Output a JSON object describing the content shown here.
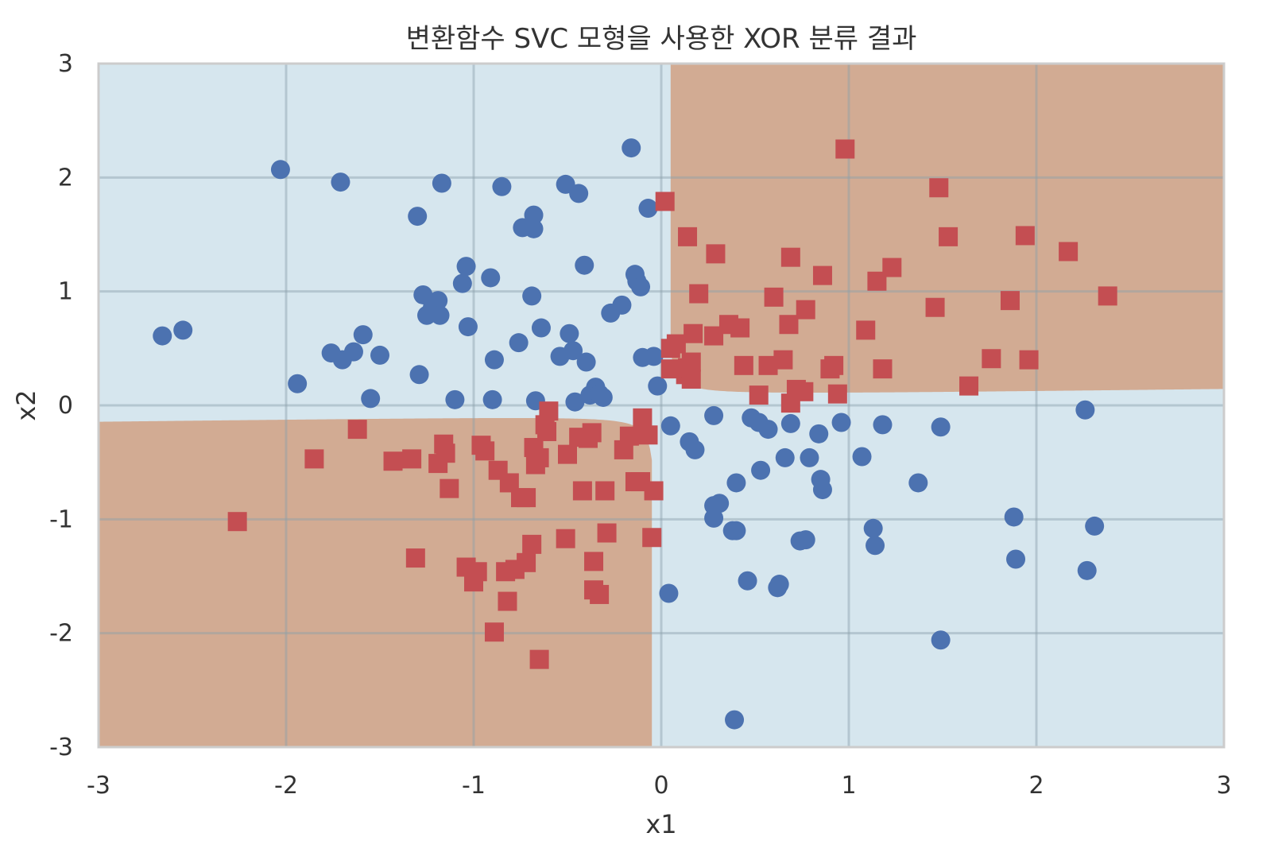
{
  "chart_data": {
    "type": "scatter",
    "title": "변환함수 SVC 모형을 사용한 XOR 분류 결과",
    "xlabel": "x1",
    "ylabel": "x2",
    "xlim": [
      -3,
      3
    ],
    "ylim": [
      -3,
      3
    ],
    "xticks": [
      -3,
      -2,
      -1,
      0,
      1,
      2,
      3
    ],
    "yticks": [
      -3,
      -2,
      -1,
      0,
      1,
      2,
      3
    ],
    "xtick_labels": [
      "-3",
      "-2",
      "-1",
      "0",
      "1",
      "2",
      "3"
    ],
    "ytick_labels": [
      "-3",
      "-2",
      "-1",
      "0",
      "1",
      "2",
      "3"
    ],
    "grid": true,
    "legend": "none",
    "decision_regions": {
      "class_0_color": "#d6e6ee",
      "class_1_color": "#d2ab93",
      "description_values": "XOR pattern: class 1 where x1*x2 > 0 (approx.)"
    },
    "series": [
      {
        "marker": "circle",
        "color": "#4c72b0",
        "points": [
          [
            -2.66,
            0.61
          ],
          [
            -2.55,
            0.66
          ],
          [
            -2.03,
            2.07
          ],
          [
            -1.94,
            0.19
          ],
          [
            -1.76,
            0.46
          ],
          [
            -1.7,
            0.4
          ],
          [
            -1.71,
            1.96
          ],
          [
            -1.64,
            0.47
          ],
          [
            -1.59,
            0.62
          ],
          [
            -1.55,
            0.06
          ],
          [
            -1.5,
            0.44
          ],
          [
            -1.3,
            1.66
          ],
          [
            -1.29,
            0.27
          ],
          [
            -1.27,
            0.97
          ],
          [
            -1.25,
            0.79
          ],
          [
            -1.22,
            0.86
          ],
          [
            -1.19,
            0.92
          ],
          [
            -1.18,
            0.79
          ],
          [
            -1.17,
            1.95
          ],
          [
            -1.1,
            0.05
          ],
          [
            -1.06,
            1.07
          ],
          [
            -1.04,
            1.22
          ],
          [
            -1.03,
            0.69
          ],
          [
            -0.91,
            1.12
          ],
          [
            -0.9,
            0.05
          ],
          [
            -0.89,
            0.4
          ],
          [
            -0.85,
            1.92
          ],
          [
            -0.76,
            0.55
          ],
          [
            -0.74,
            1.56
          ],
          [
            -0.69,
            0.96
          ],
          [
            -0.68,
            1.55
          ],
          [
            -0.68,
            1.67
          ],
          [
            -0.67,
            0.04
          ],
          [
            -0.64,
            0.68
          ],
          [
            -0.54,
            0.43
          ],
          [
            -0.51,
            1.94
          ],
          [
            -0.49,
            0.63
          ],
          [
            -0.47,
            0.48
          ],
          [
            -0.46,
            0.03
          ],
          [
            -0.44,
            1.86
          ],
          [
            -0.41,
            1.23
          ],
          [
            -0.4,
            0.38
          ],
          [
            -0.38,
            0.09
          ],
          [
            -0.35,
            0.16
          ],
          [
            -0.33,
            0.1
          ],
          [
            -0.31,
            0.07
          ],
          [
            -0.27,
            0.81
          ],
          [
            -0.21,
            0.88
          ],
          [
            -0.16,
            2.26
          ],
          [
            -0.14,
            1.15
          ],
          [
            -0.13,
            1.09
          ],
          [
            -0.11,
            1.04
          ],
          [
            -0.1,
            0.42
          ],
          [
            -0.07,
            1.73
          ],
          [
            -0.04,
            0.43
          ],
          [
            -0.02,
            0.17
          ],
          [
            0.05,
            -0.18
          ],
          [
            0.04,
            -1.65
          ],
          [
            0.15,
            -0.32
          ],
          [
            0.18,
            -0.39
          ],
          [
            0.28,
            -0.09
          ],
          [
            0.28,
            -0.88
          ],
          [
            0.28,
            -0.99
          ],
          [
            0.31,
            -0.86
          ],
          [
            0.38,
            -1.1
          ],
          [
            0.39,
            -2.76
          ],
          [
            0.4,
            -1.1
          ],
          [
            0.4,
            -0.68
          ],
          [
            0.46,
            -1.54
          ],
          [
            0.48,
            -0.11
          ],
          [
            0.52,
            -0.15
          ],
          [
            0.53,
            -0.57
          ],
          [
            0.57,
            -0.21
          ],
          [
            0.62,
            -1.6
          ],
          [
            0.63,
            -1.57
          ],
          [
            0.66,
            -0.46
          ],
          [
            0.69,
            -0.16
          ],
          [
            0.74,
            -1.19
          ],
          [
            0.77,
            -1.18
          ],
          [
            0.79,
            -0.46
          ],
          [
            0.84,
            -0.25
          ],
          [
            0.85,
            -0.65
          ],
          [
            0.86,
            -0.74
          ],
          [
            0.96,
            -0.15
          ],
          [
            1.07,
            -0.45
          ],
          [
            1.13,
            -1.08
          ],
          [
            1.14,
            -1.23
          ],
          [
            1.18,
            -0.17
          ],
          [
            1.37,
            -0.68
          ],
          [
            1.49,
            -0.19
          ],
          [
            1.49,
            -2.06
          ],
          [
            1.88,
            -0.98
          ],
          [
            1.89,
            -1.35
          ],
          [
            2.26,
            -0.04
          ],
          [
            2.27,
            -1.45
          ],
          [
            2.31,
            -1.06
          ]
        ]
      },
      {
        "marker": "square",
        "color": "#c44e52",
        "points": [
          [
            -2.26,
            -1.02
          ],
          [
            -1.85,
            -0.47
          ],
          [
            -1.62,
            -0.21
          ],
          [
            -1.43,
            -0.49
          ],
          [
            -1.33,
            -0.47
          ],
          [
            -1.31,
            -1.34
          ],
          [
            -1.19,
            -0.51
          ],
          [
            -1.16,
            -0.34
          ],
          [
            -1.15,
            -0.42
          ],
          [
            -1.13,
            -0.73
          ],
          [
            -1.04,
            -1.42
          ],
          [
            -1.0,
            -1.55
          ],
          [
            -0.98,
            -1.46
          ],
          [
            -0.96,
            -0.35
          ],
          [
            -0.94,
            -0.4
          ],
          [
            -0.89,
            -1.99
          ],
          [
            -0.87,
            -0.57
          ],
          [
            -0.83,
            -1.46
          ],
          [
            -0.81,
            -0.68
          ],
          [
            -0.82,
            -1.72
          ],
          [
            -0.78,
            -1.44
          ],
          [
            -0.75,
            -0.81
          ],
          [
            -0.72,
            -0.81
          ],
          [
            -0.72,
            -1.38
          ],
          [
            -0.69,
            -1.22
          ],
          [
            -0.68,
            -0.37
          ],
          [
            -0.67,
            -0.52
          ],
          [
            -0.65,
            -0.46
          ],
          [
            -0.65,
            -2.23
          ],
          [
            -0.62,
            -0.17
          ],
          [
            -0.61,
            -0.23
          ],
          [
            -0.6,
            -0.05
          ],
          [
            -0.5,
            -0.43
          ],
          [
            -0.51,
            -1.17
          ],
          [
            -0.44,
            -0.28
          ],
          [
            -0.42,
            -0.75
          ],
          [
            -0.39,
            -0.29
          ],
          [
            -0.37,
            -0.24
          ],
          [
            -0.36,
            -1.37
          ],
          [
            -0.36,
            -1.62
          ],
          [
            -0.33,
            -1.66
          ],
          [
            -0.3,
            -0.75
          ],
          [
            -0.29,
            -1.12
          ],
          [
            -0.2,
            -0.39
          ],
          [
            -0.17,
            -0.27
          ],
          [
            -0.14,
            -0.67
          ],
          [
            -0.11,
            -0.67
          ],
          [
            -0.1,
            -0.11
          ],
          [
            -0.07,
            -0.26
          ],
          [
            -0.05,
            -1.16
          ],
          [
            -0.04,
            -0.75
          ],
          [
            0.02,
            1.79
          ],
          [
            0.05,
            0.5
          ],
          [
            0.05,
            0.32
          ],
          [
            0.08,
            0.54
          ],
          [
            0.13,
            0.27
          ],
          [
            0.14,
            0.33
          ],
          [
            0.14,
            1.48
          ],
          [
            0.16,
            0.38
          ],
          [
            0.16,
            0.23
          ],
          [
            0.17,
            0.63
          ],
          [
            0.2,
            0.98
          ],
          [
            0.28,
            0.61
          ],
          [
            0.29,
            1.33
          ],
          [
            0.36,
            0.71
          ],
          [
            0.42,
            0.68
          ],
          [
            0.44,
            0.35
          ],
          [
            0.52,
            0.09
          ],
          [
            0.57,
            0.35
          ],
          [
            0.6,
            0.95
          ],
          [
            0.65,
            0.4
          ],
          [
            0.68,
            0.71
          ],
          [
            0.69,
            1.3
          ],
          [
            0.69,
            0.02
          ],
          [
            0.72,
            0.14
          ],
          [
            0.76,
            0.12
          ],
          [
            0.77,
            0.84
          ],
          [
            0.86,
            1.14
          ],
          [
            0.9,
            0.32
          ],
          [
            0.92,
            0.35
          ],
          [
            0.94,
            0.1
          ],
          [
            0.98,
            2.25
          ],
          [
            1.09,
            0.66
          ],
          [
            1.15,
            1.09
          ],
          [
            1.18,
            0.32
          ],
          [
            1.23,
            1.21
          ],
          [
            1.46,
            0.86
          ],
          [
            1.48,
            1.91
          ],
          [
            1.53,
            1.48
          ],
          [
            1.64,
            0.17
          ],
          [
            1.76,
            0.41
          ],
          [
            1.86,
            0.92
          ],
          [
            1.94,
            1.49
          ],
          [
            1.96,
            0.4
          ],
          [
            2.17,
            1.35
          ],
          [
            2.38,
            0.96
          ]
        ]
      }
    ]
  }
}
